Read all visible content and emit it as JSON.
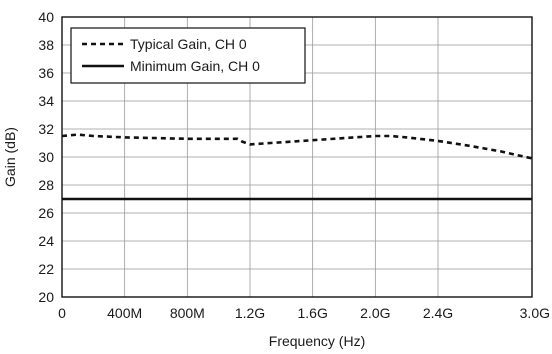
{
  "chart_data": {
    "type": "line",
    "xlabel": "Frequency (Hz)",
    "ylabel": "Gain (dB)",
    "xlim": [
      0,
      3000000000
    ],
    "ylim": [
      20,
      40
    ],
    "x_ticks": [
      {
        "value": 0,
        "label": "0"
      },
      {
        "value": 400000000,
        "label": "400M"
      },
      {
        "value": 800000000,
        "label": "800M"
      },
      {
        "value": 1200000000,
        "label": "1.2G"
      },
      {
        "value": 1600000000,
        "label": "1.6G"
      },
      {
        "value": 2000000000,
        "label": "2.0G"
      },
      {
        "value": 2400000000,
        "label": "2.4G"
      },
      {
        "value": 3000000000,
        "label": "3.0G"
      }
    ],
    "y_ticks": [
      20,
      22,
      24,
      26,
      28,
      30,
      32,
      34,
      36,
      38,
      40
    ],
    "grid": true,
    "legend_position": "top-left",
    "series": [
      {
        "name": "Typical Gain, CH 0",
        "style": "dashed",
        "color": "#111111",
        "x": [
          0,
          100000000,
          200000000,
          400000000,
          600000000,
          800000000,
          1000000000,
          1120000000,
          1150000000,
          1200000000,
          1400000000,
          1600000000,
          1800000000,
          2000000000,
          2100000000,
          2200000000,
          2400000000,
          2600000000,
          2800000000,
          3000000000
        ],
        "y": [
          31.5,
          31.6,
          31.5,
          31.4,
          31.35,
          31.3,
          31.3,
          31.3,
          31.1,
          30.9,
          31.05,
          31.2,
          31.35,
          31.5,
          31.5,
          31.4,
          31.15,
          30.8,
          30.4,
          29.9
        ]
      },
      {
        "name": "Minimum Gain, CH 0",
        "style": "solid",
        "color": "#111111",
        "x": [
          0,
          3000000000
        ],
        "y": [
          27,
          27
        ]
      }
    ]
  }
}
